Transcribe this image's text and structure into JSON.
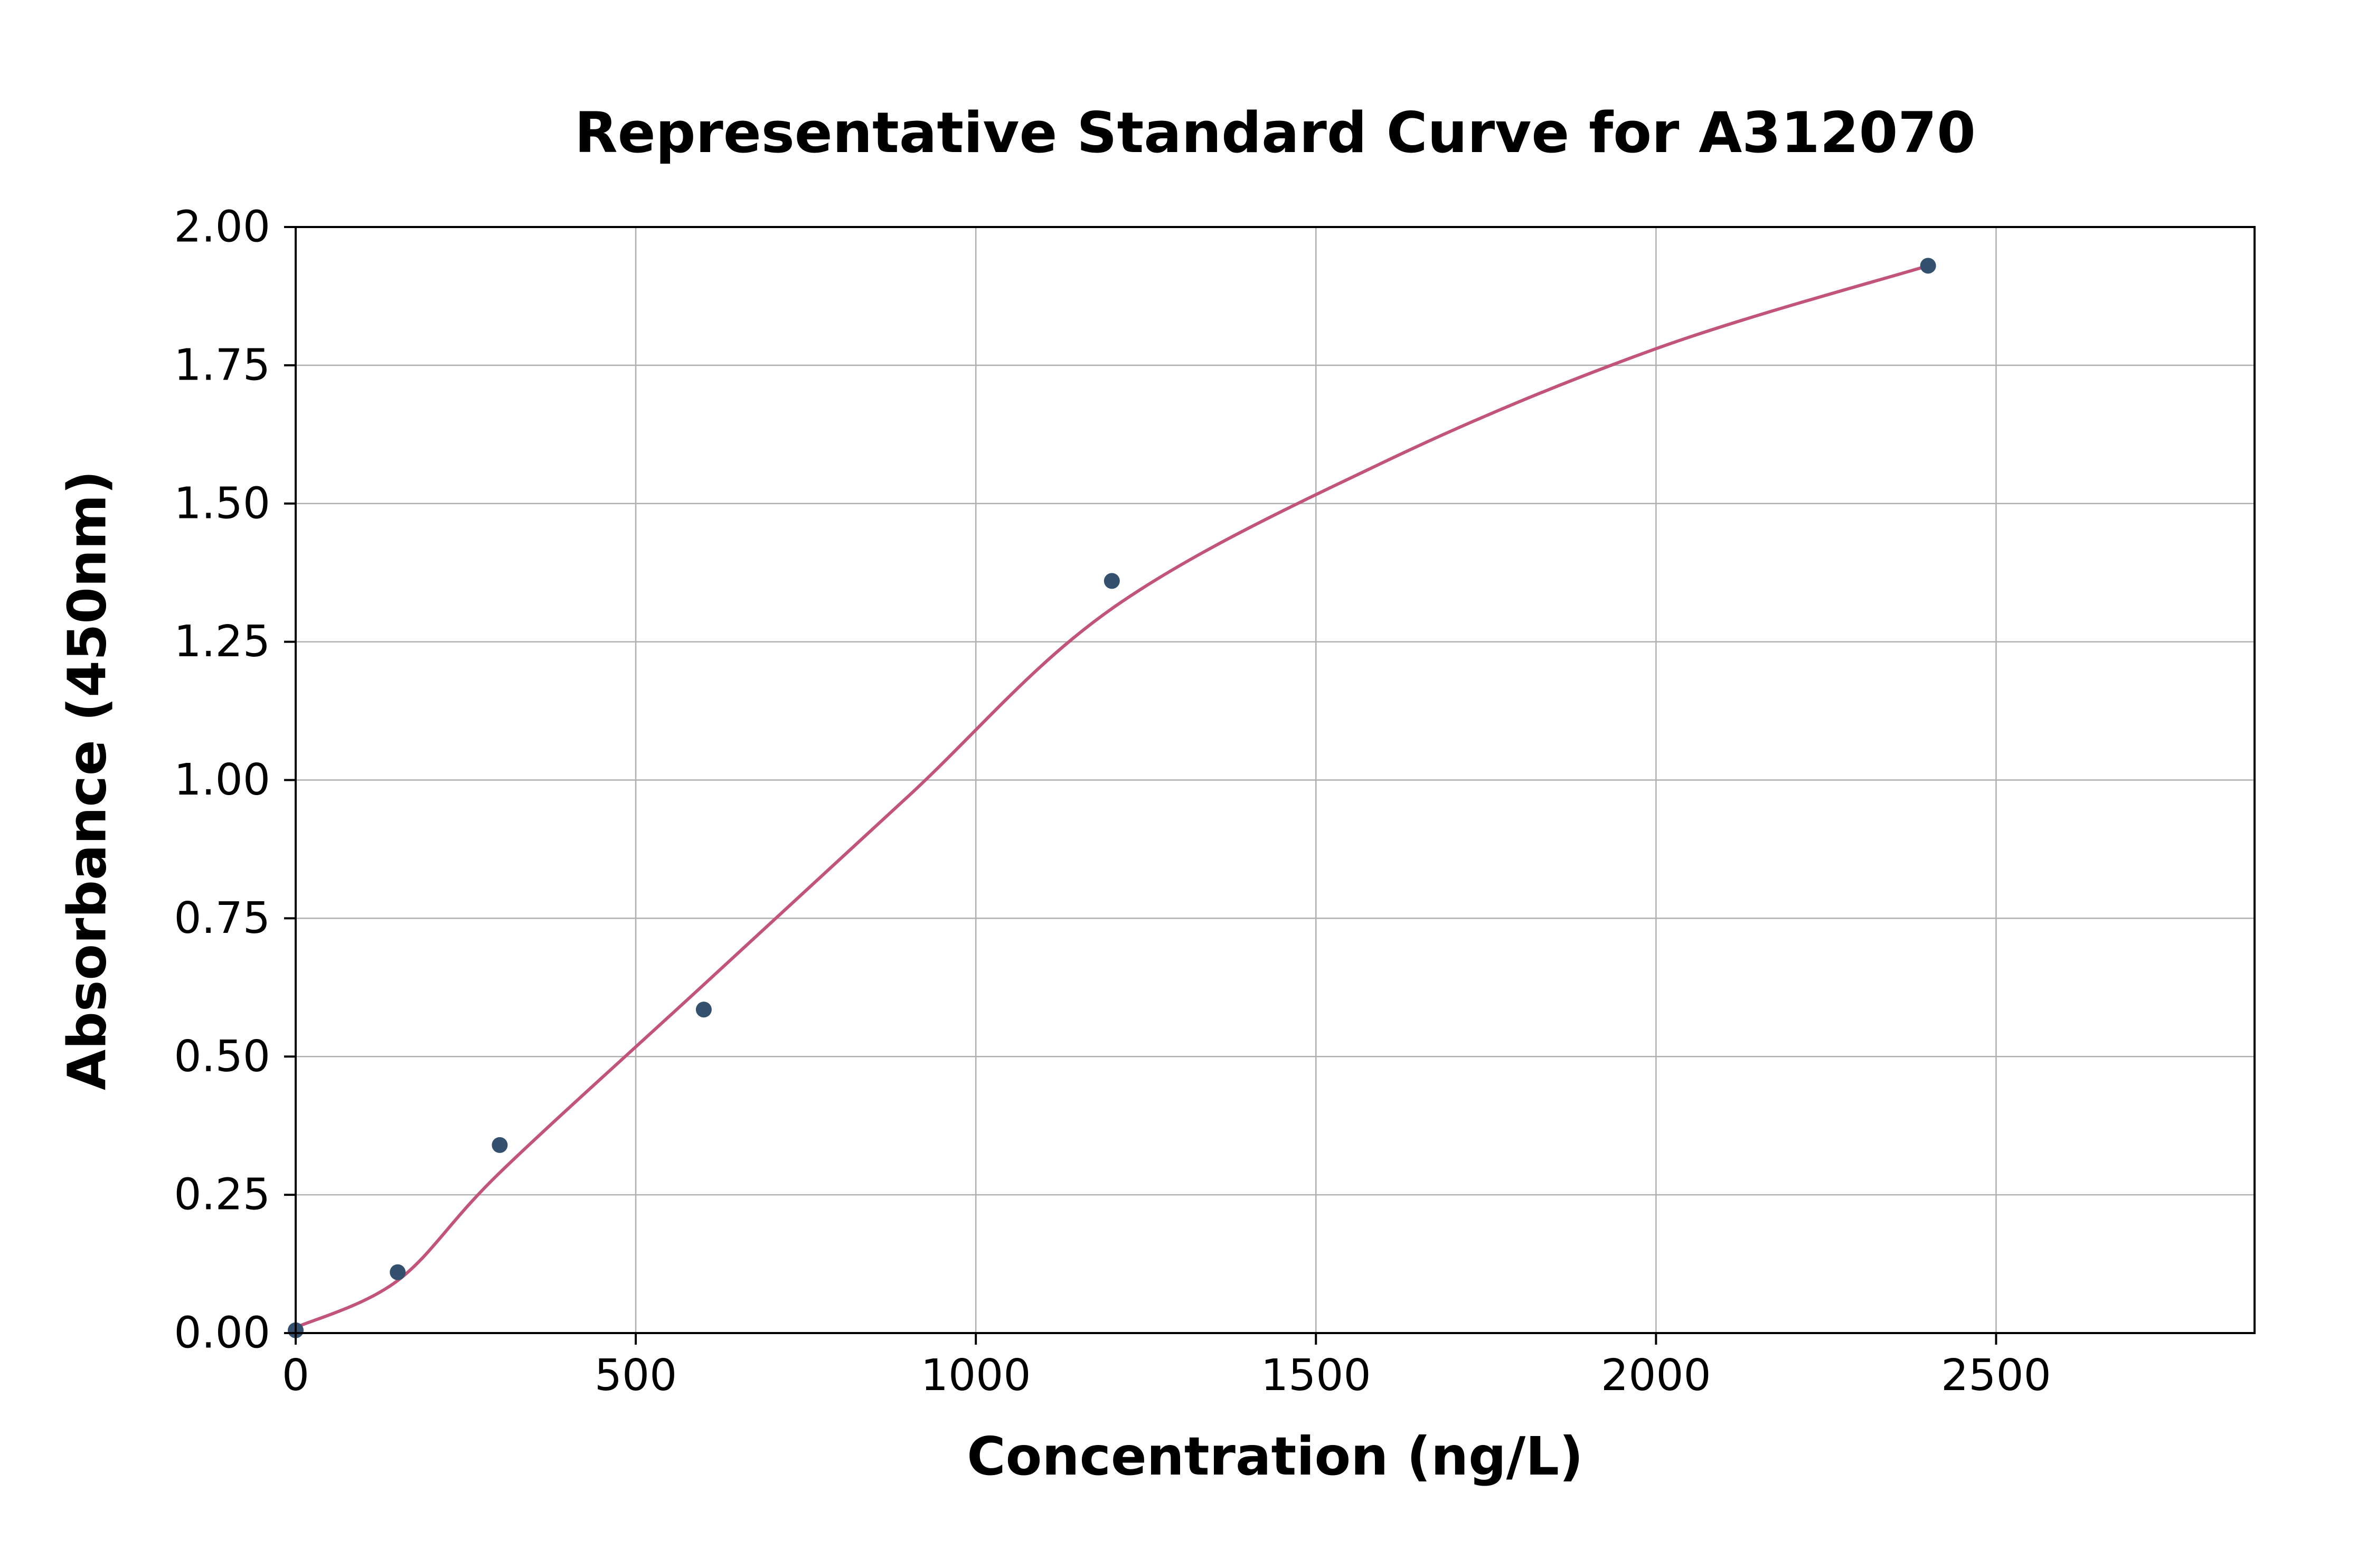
{
  "chart_data": {
    "type": "scatter",
    "title": "Representative Standard Curve for A312070",
    "xlabel": "Concentration (ng/L)",
    "ylabel": "Absorbance (450nm)",
    "xlim": [
      0,
      2880
    ],
    "ylim": [
      0,
      2.0
    ],
    "xticks": [
      0,
      500,
      1000,
      1500,
      2000,
      2500
    ],
    "xtick_labels": [
      "0",
      "500",
      "1000",
      "1500",
      "2000",
      "2500"
    ],
    "yticks": [
      0.0,
      0.25,
      0.5,
      0.75,
      1.0,
      1.25,
      1.5,
      1.75,
      2.0
    ],
    "ytick_labels": [
      "0.00",
      "0.25",
      "0.50",
      "0.75",
      "1.00",
      "1.25",
      "1.50",
      "1.75",
      "2.00"
    ],
    "grid": true,
    "legend": "none",
    "points": [
      {
        "x": 0,
        "y": 0.005
      },
      {
        "x": 150,
        "y": 0.11
      },
      {
        "x": 300,
        "y": 0.34
      },
      {
        "x": 600,
        "y": 0.585
      },
      {
        "x": 1200,
        "y": 1.36
      },
      {
        "x": 2400,
        "y": 1.93
      }
    ],
    "fit_curve": [
      {
        "x": 0,
        "y": 0.01
      },
      {
        "x": 150,
        "y": 0.095
      },
      {
        "x": 300,
        "y": 0.29
      },
      {
        "x": 600,
        "y": 0.63
      },
      {
        "x": 900,
        "y": 0.97
      },
      {
        "x": 1200,
        "y": 1.31
      },
      {
        "x": 1600,
        "y": 1.575
      },
      {
        "x": 2000,
        "y": 1.78
      },
      {
        "x": 2400,
        "y": 1.93
      }
    ],
    "colors": {
      "curve": "#c2537a",
      "points": "#33506e",
      "grid": "#b0b0b0",
      "axis": "#000000",
      "background": "#ffffff"
    }
  }
}
